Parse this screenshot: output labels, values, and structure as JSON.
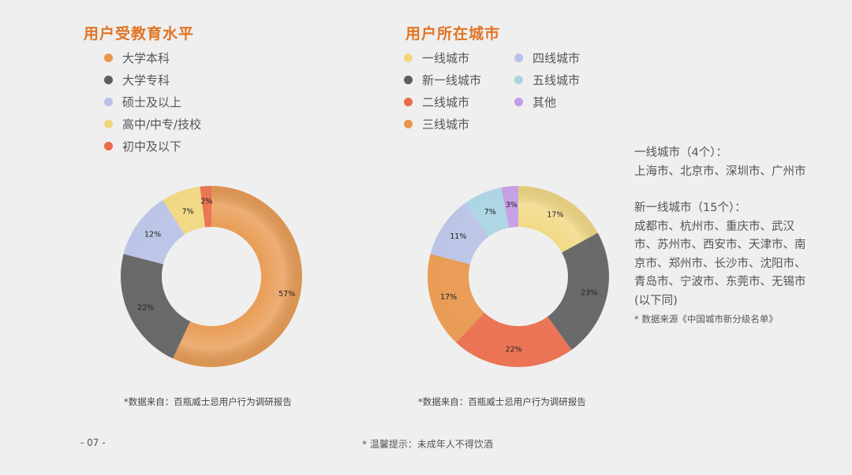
{
  "colors": {
    "title": "#e07423",
    "orange": "#e8964a",
    "dark": "#5f5e5e",
    "lavender": "#b9c2e6",
    "yellow": "#f1d77c",
    "red": "#ea6a49",
    "lightblue": "#a8d4e4",
    "purple": "#c39be6"
  },
  "edu": {
    "title": "用户受教育水平",
    "source": "*数据来自：百瓶威士忌用户行为调研报告"
  },
  "city": {
    "title": "用户所在城市",
    "source": "*数据来自：百瓶威士忌用户行为调研报告"
  },
  "chart_data": [
    {
      "type": "pie",
      "donut": true,
      "title": "用户受教育水平",
      "legend_position": "top-left",
      "categories": [
        "大学本科",
        "大学专科",
        "硕士及以上",
        "高中/中专/技校",
        "初中及以下"
      ],
      "values": [
        57,
        22,
        12,
        7,
        2
      ],
      "labels": [
        "57%",
        "22%",
        "12%",
        "7%",
        "2%"
      ],
      "colors": [
        "#e8964a",
        "#5f5e5e",
        "#b9c2e6",
        "#f1d77c",
        "#ea6a49"
      ]
    },
    {
      "type": "pie",
      "donut": true,
      "title": "用户所在城市",
      "legend_position": "top-left",
      "legend_order": [
        "一线城市",
        "新一线城市",
        "二线城市",
        "三线城市",
        "四线城市",
        "五线城市",
        "其他"
      ],
      "categories": [
        "一线城市",
        "新一线城市",
        "二线城市",
        "三线城市",
        "四线城市",
        "五线城市",
        "其他"
      ],
      "values": [
        17,
        23,
        22,
        17,
        11,
        7,
        3
      ],
      "labels": [
        "17%",
        "23%",
        "22%",
        "17%",
        "11%",
        "7%",
        "3%"
      ],
      "colors": [
        "#f1d77c",
        "#5f5e5e",
        "#ea6a49",
        "#e8964a",
        "#b9c2e6",
        "#a8d4e4",
        "#c39be6"
      ]
    }
  ],
  "note": {
    "tier1_heading": "一线城市（4个）：",
    "tier1_cities": "上海市、北京市、深圳市、广州市",
    "newtier1_heading": "新一线城市（15个）：",
    "newtier1_cities": "成都市、杭州市、重庆市、武汉市、苏州市、西安市、天津市、南京市、郑州市、长沙市、沈阳市、青岛市、宁波市、东莞市、无锡市",
    "suffix": "(以下同)",
    "cite": "* 数据来源《中国城市新分级名单》"
  },
  "footer": {
    "page_number": "- 07 -",
    "warning": "* 温馨提示：未成年人不得饮酒"
  }
}
